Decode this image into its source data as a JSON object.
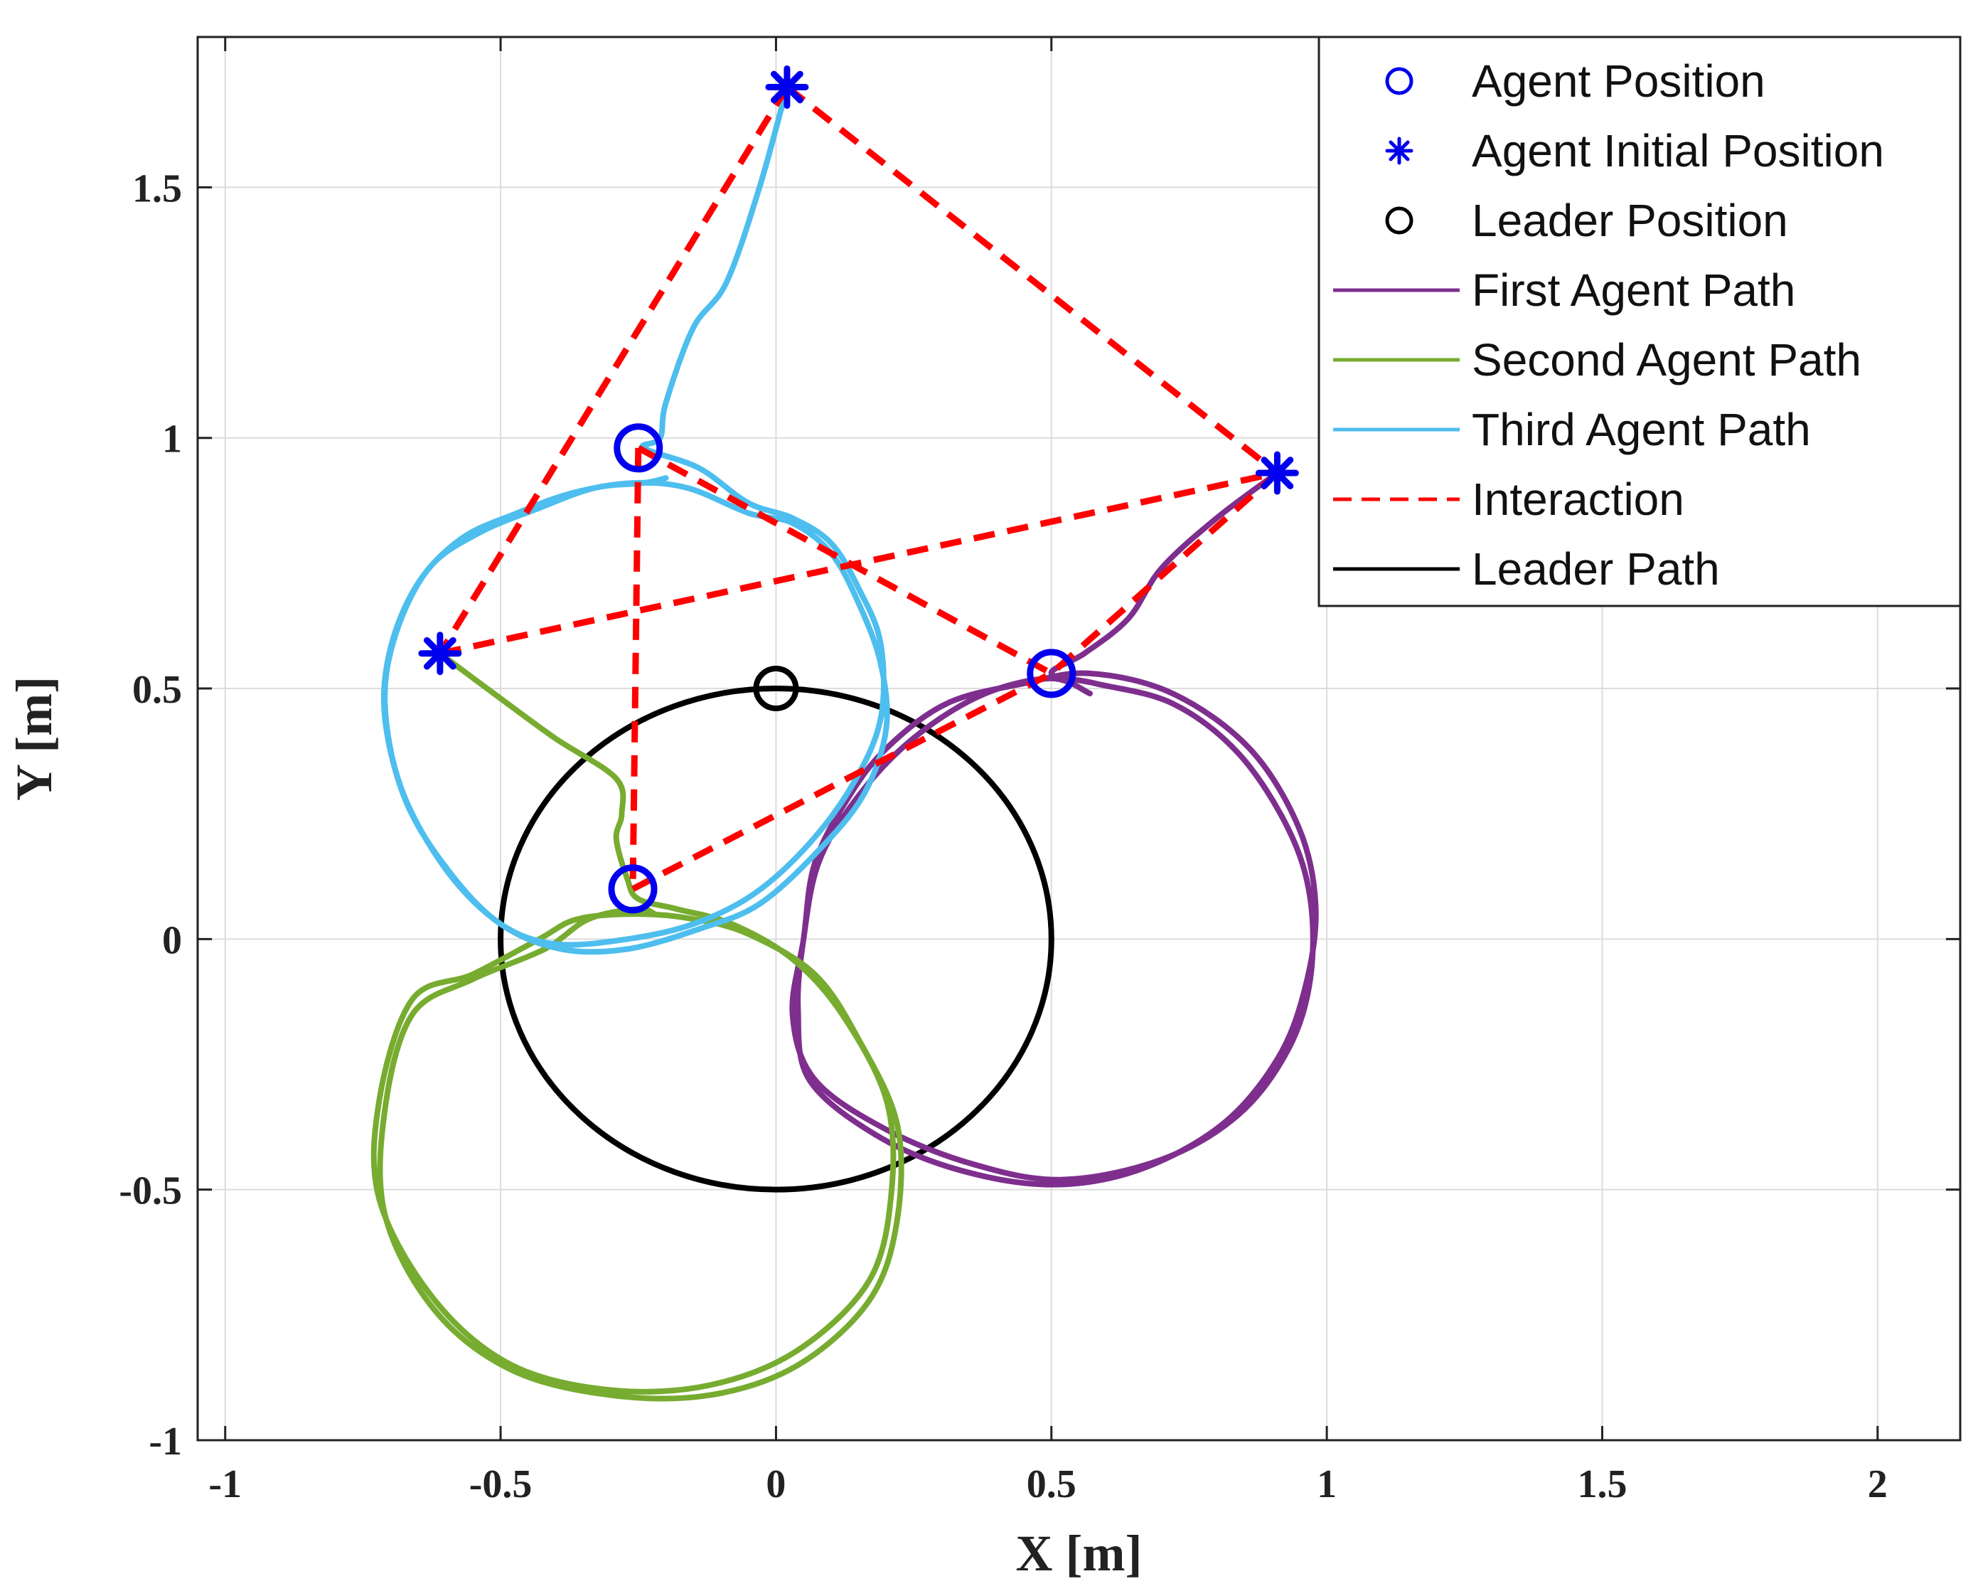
{
  "chart_data": {
    "type": "line",
    "xlabel": "X [m]",
    "ylabel": "Y [m]",
    "xlim": [
      -1.05,
      2.15
    ],
    "ylim": [
      -1.0,
      1.8
    ],
    "xticks": [
      -1,
      -0.5,
      0,
      0.5,
      1,
      1.5,
      2
    ],
    "xtick_labels": [
      "-1",
      "-0.5",
      "0",
      "0.5",
      "1",
      "1.5",
      "2"
    ],
    "yticks": [
      -1,
      -0.5,
      0,
      0.5,
      1,
      1.5
    ],
    "ytick_labels": [
      "-1",
      "-0.5",
      "0",
      "0.5",
      "1",
      "1.5"
    ],
    "grid": true,
    "legend_position": "top-right",
    "colors": {
      "agent_marker": "#0000ee",
      "first_path": "#7e2f8e",
      "second_path": "#77ac30",
      "third_path": "#4dbeee",
      "interaction": "#ff0000",
      "leader": "#000000"
    },
    "legend": [
      {
        "label": "Agent Position",
        "style": "circle-marker",
        "color": "#0000ee"
      },
      {
        "label": "Agent Initial Position",
        "style": "star-marker",
        "color": "#0000ee"
      },
      {
        "label": "Leader Position",
        "style": "circle-marker",
        "color": "#000000"
      },
      {
        "label": "First Agent Path",
        "style": "line",
        "color": "#7e2f8e"
      },
      {
        "label": "Second Agent Path",
        "style": "line",
        "color": "#77ac30"
      },
      {
        "label": "Third Agent Path",
        "style": "line",
        "color": "#4dbeee"
      },
      {
        "label": "Interaction",
        "style": "dashed",
        "color": "#ff0000"
      },
      {
        "label": "Leader Path",
        "style": "line",
        "color": "#000000"
      }
    ],
    "agent_positions": [
      {
        "x": 0.5,
        "y": 0.53
      },
      {
        "x": -0.26,
        "y": 0.1
      },
      {
        "x": -0.25,
        "y": 0.98
      }
    ],
    "agent_initial_positions": [
      {
        "x": 0.91,
        "y": 0.93
      },
      {
        "x": -0.61,
        "y": 0.57
      },
      {
        "x": 0.02,
        "y": 1.7
      }
    ],
    "leader_position": {
      "x": 0.0,
      "y": 0.5
    },
    "leader_path": {
      "center": [
        0,
        0
      ],
      "radius": 0.5
    },
    "interactions": [
      [
        [
          0.02,
          1.7
        ],
        [
          0.91,
          0.93
        ]
      ],
      [
        [
          0.02,
          1.7
        ],
        [
          -0.61,
          0.57
        ]
      ],
      [
        [
          -0.61,
          0.57
        ],
        [
          0.91,
          0.93
        ]
      ],
      [
        [
          0.91,
          0.93
        ],
        [
          0.5,
          0.53
        ]
      ],
      [
        [
          -0.25,
          0.98
        ],
        [
          0.5,
          0.53
        ]
      ],
      [
        [
          -0.25,
          0.98
        ],
        [
          -0.26,
          0.1
        ]
      ],
      [
        [
          -0.26,
          0.1
        ],
        [
          0.5,
          0.53
        ]
      ]
    ],
    "series": [
      {
        "name": "First Agent Path",
        "color": "#7e2f8e",
        "points": [
          [
            0.91,
            0.93
          ],
          [
            0.8,
            0.84
          ],
          [
            0.7,
            0.74
          ],
          [
            0.64,
            0.64
          ],
          [
            0.56,
            0.57
          ],
          [
            0.5,
            0.53
          ],
          [
            0.58,
            0.51
          ],
          [
            0.72,
            0.47
          ],
          [
            0.84,
            0.37
          ],
          [
            0.93,
            0.22
          ],
          [
            0.97,
            0.08
          ],
          [
            0.97,
            -0.08
          ],
          [
            0.93,
            -0.22
          ],
          [
            0.84,
            -0.35
          ],
          [
            0.7,
            -0.44
          ],
          [
            0.52,
            -0.48
          ],
          [
            0.36,
            -0.45
          ],
          [
            0.2,
            -0.38
          ],
          [
            0.07,
            -0.28
          ],
          [
            0.03,
            -0.15
          ],
          [
            0.05,
            0.0
          ],
          [
            0.07,
            0.15
          ],
          [
            0.13,
            0.28
          ],
          [
            0.2,
            0.38
          ],
          [
            0.31,
            0.47
          ],
          [
            0.45,
            0.51
          ],
          [
            0.57,
            0.53
          ],
          [
            0.72,
            0.49
          ],
          [
            0.86,
            0.38
          ],
          [
            0.95,
            0.22
          ],
          [
            0.98,
            0.06
          ],
          [
            0.96,
            -0.1
          ],
          [
            0.91,
            -0.24
          ],
          [
            0.81,
            -0.37
          ],
          [
            0.66,
            -0.46
          ],
          [
            0.5,
            -0.49
          ],
          [
            0.33,
            -0.46
          ],
          [
            0.18,
            -0.39
          ],
          [
            0.06,
            -0.28
          ],
          [
            0.04,
            -0.14
          ],
          [
            0.05,
            0.0
          ],
          [
            0.08,
            0.16
          ],
          [
            0.16,
            0.3
          ],
          [
            0.26,
            0.41
          ],
          [
            0.38,
            0.49
          ],
          [
            0.5,
            0.52
          ],
          [
            0.57,
            0.49
          ]
        ]
      },
      {
        "name": "Second Agent Path",
        "color": "#77ac30",
        "points": [
          [
            -0.61,
            0.57
          ],
          [
            -0.5,
            0.48
          ],
          [
            -0.4,
            0.4
          ],
          [
            -0.29,
            0.32
          ],
          [
            -0.28,
            0.25
          ],
          [
            -0.29,
            0.2
          ],
          [
            -0.27,
            0.12
          ],
          [
            -0.25,
            0.08
          ],
          [
            -0.18,
            0.06
          ],
          [
            -0.08,
            0.03
          ],
          [
            0.03,
            -0.04
          ],
          [
            0.12,
            -0.15
          ],
          [
            0.2,
            -0.32
          ],
          [
            0.21,
            -0.5
          ],
          [
            0.17,
            -0.68
          ],
          [
            0.04,
            -0.82
          ],
          [
            -0.12,
            -0.89
          ],
          [
            -0.3,
            -0.9
          ],
          [
            -0.48,
            -0.85
          ],
          [
            -0.62,
            -0.72
          ],
          [
            -0.72,
            -0.52
          ],
          [
            -0.72,
            -0.32
          ],
          [
            -0.66,
            -0.12
          ],
          [
            -0.55,
            -0.07
          ],
          [
            -0.43,
            -0.0
          ],
          [
            -0.36,
            0.04
          ],
          [
            -0.25,
            0.05
          ],
          [
            -0.15,
            0.04
          ],
          [
            -0.05,
            0.01
          ],
          [
            0.07,
            -0.07
          ],
          [
            0.15,
            -0.2
          ],
          [
            0.22,
            -0.37
          ],
          [
            0.22,
            -0.56
          ],
          [
            0.17,
            -0.72
          ],
          [
            0.04,
            -0.85
          ],
          [
            -0.12,
            -0.91
          ],
          [
            -0.3,
            -0.91
          ],
          [
            -0.48,
            -0.86
          ],
          [
            -0.62,
            -0.74
          ],
          [
            -0.71,
            -0.55
          ],
          [
            -0.71,
            -0.34
          ],
          [
            -0.66,
            -0.15
          ],
          [
            -0.55,
            -0.08
          ],
          [
            -0.42,
            -0.02
          ],
          [
            -0.34,
            0.04
          ],
          [
            -0.25,
            0.06
          ],
          [
            -0.22,
            0.05
          ]
        ]
      },
      {
        "name": "Third Agent Path",
        "color": "#4dbeee",
        "points": [
          [
            0.02,
            1.7
          ],
          [
            -0.03,
            1.5
          ],
          [
            -0.09,
            1.31
          ],
          [
            -0.15,
            1.22
          ],
          [
            -0.2,
            1.07
          ],
          [
            -0.21,
            1.0
          ],
          [
            -0.24,
            0.98
          ],
          [
            -0.14,
            0.94
          ],
          [
            -0.05,
            0.87
          ],
          [
            0.03,
            0.84
          ],
          [
            0.1,
            0.79
          ],
          [
            0.15,
            0.7
          ],
          [
            0.19,
            0.59
          ],
          [
            0.19,
            0.44
          ],
          [
            0.14,
            0.31
          ],
          [
            0.06,
            0.19
          ],
          [
            -0.04,
            0.09
          ],
          [
            -0.15,
            0.03
          ],
          [
            -0.27,
            0.0
          ],
          [
            -0.4,
            -0.01
          ],
          [
            -0.5,
            0.03
          ],
          [
            -0.59,
            0.13
          ],
          [
            -0.67,
            0.27
          ],
          [
            -0.71,
            0.44
          ],
          [
            -0.7,
            0.58
          ],
          [
            -0.65,
            0.71
          ],
          [
            -0.57,
            0.8
          ],
          [
            -0.47,
            0.85
          ],
          [
            -0.37,
            0.89
          ],
          [
            -0.26,
            0.91
          ],
          [
            -0.16,
            0.9
          ],
          [
            -0.05,
            0.85
          ],
          [
            0.03,
            0.83
          ],
          [
            0.1,
            0.77
          ],
          [
            0.15,
            0.67
          ],
          [
            0.19,
            0.55
          ],
          [
            0.2,
            0.42
          ],
          [
            0.16,
            0.29
          ],
          [
            0.08,
            0.18
          ],
          [
            -0.03,
            0.07
          ],
          [
            -0.14,
            0.02
          ],
          [
            -0.27,
            -0.02
          ],
          [
            -0.39,
            -0.02
          ],
          [
            -0.5,
            0.03
          ],
          [
            -0.6,
            0.14
          ],
          [
            -0.68,
            0.3
          ],
          [
            -0.71,
            0.47
          ],
          [
            -0.69,
            0.61
          ],
          [
            -0.63,
            0.74
          ],
          [
            -0.54,
            0.81
          ],
          [
            -0.43,
            0.86
          ],
          [
            -0.33,
            0.9
          ],
          [
            -0.24,
            0.91
          ],
          [
            -0.2,
            0.92
          ]
        ]
      }
    ]
  }
}
